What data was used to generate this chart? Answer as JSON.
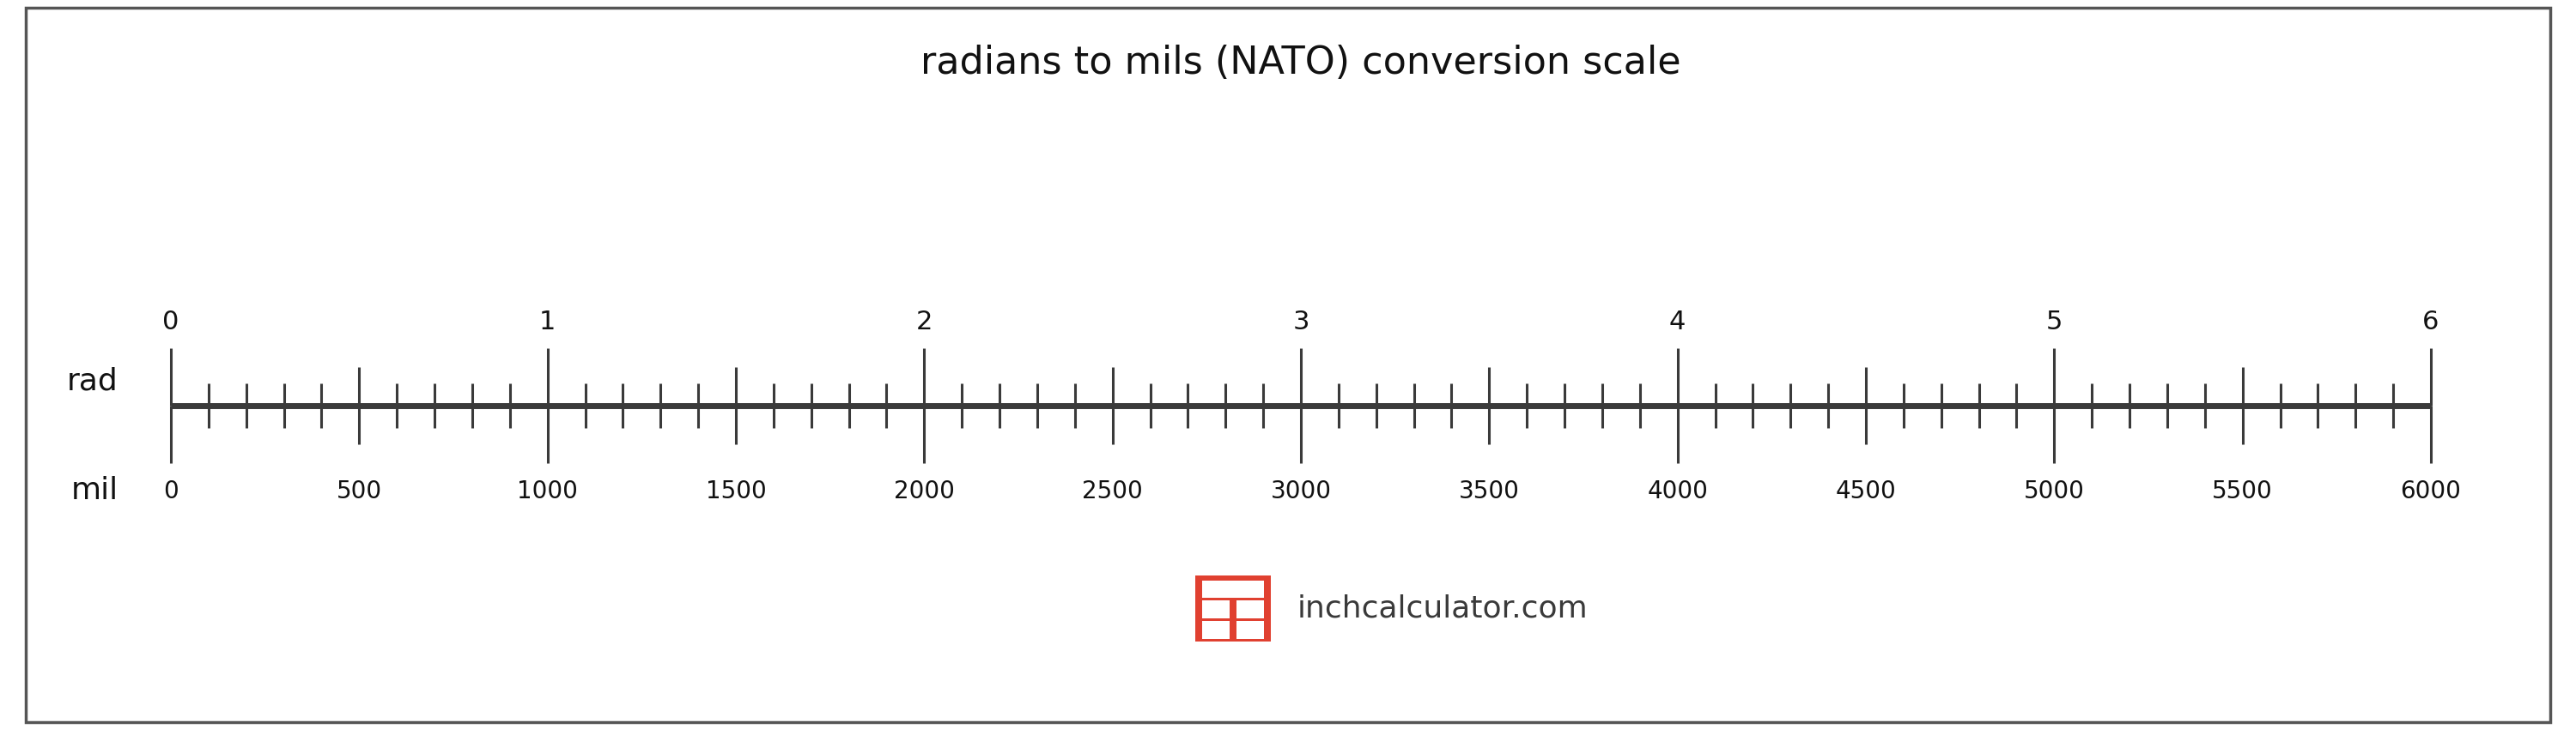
{
  "title": "radians to mils (NATO) conversion scale",
  "title_fontsize": 32,
  "background_color": "#ffffff",
  "border_color": "#555555",
  "scale_color": "#3a3a3a",
  "rad_min": 0,
  "rad_max": 6,
  "mil_min": 0,
  "mil_max": 6000,
  "rad_major_ticks": [
    0,
    1,
    2,
    3,
    4,
    5,
    6
  ],
  "mil_major_ticks": [
    0,
    500,
    1000,
    1500,
    2000,
    2500,
    3000,
    3500,
    4000,
    4500,
    5000,
    5500,
    6000
  ],
  "label_rad": "rad",
  "label_mil": "mil",
  "watermark_text": "inchcalculator.com",
  "watermark_color": "#3a3a3a",
  "icon_color": "#e04030",
  "tick_linewidth": 2.2,
  "axis_linewidth": 5,
  "rad_major_tick_up": 0.42,
  "rad_mid_tick_up": 0.28,
  "rad_minor_tick_up": 0.16,
  "mil_major_tick_dn": 0.42,
  "mil_mid_tick_dn": 0.28,
  "mil_minor_tick_dn": 0.16
}
